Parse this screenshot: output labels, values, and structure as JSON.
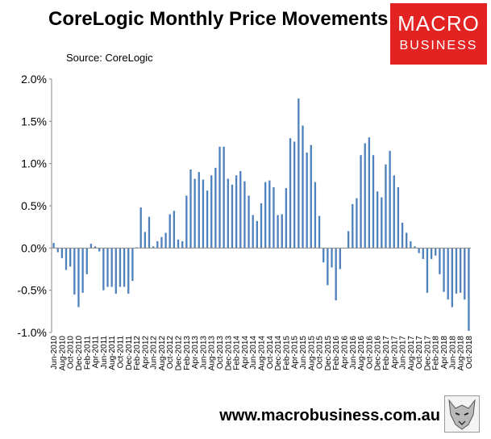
{
  "header": {
    "title": "CoreLogic Monthly Price Movements",
    "source": "Source: CoreLogic"
  },
  "logo": {
    "line1": "MACRO",
    "line2": "BUSINESS",
    "color": "#e32322"
  },
  "footer": {
    "url": "www.macrobusiness.com.au"
  },
  "chart_data": {
    "type": "bar",
    "title": "CoreLogic Monthly Price Movements",
    "xlabel": "",
    "ylabel": "",
    "ylim": [
      -1.0,
      2.0
    ],
    "yticks": [
      "2.0%",
      "1.5%",
      "1.0%",
      "0.5%",
      "0.0%",
      "-0.5%",
      "-1.0%"
    ],
    "grid": false,
    "bar_color": "#4f81bd",
    "tick_labels": [
      "Jun-2010",
      "Aug-2010",
      "Oct-2010",
      "Dec-2010",
      "Feb-2011",
      "Apr-2011",
      "Jun-2011",
      "Aug-2011",
      "Oct-2011",
      "Dec-2011",
      "Feb-2012",
      "Apr-2012",
      "Jun-2012",
      "Aug-2012",
      "Oct-2012",
      "Dec-2012",
      "Feb-2013",
      "Apr-2013",
      "Jun-2013",
      "Aug-2013",
      "Oct-2013",
      "Dec-2013",
      "Feb-2014",
      "Apr-2014",
      "Jun-2014",
      "Aug-2014",
      "Oct-2014",
      "Dec-2014",
      "Feb-2015",
      "Apr-2015",
      "Jun-2015",
      "Aug-2015",
      "Oct-2015",
      "Dec-2015",
      "Feb-2016",
      "Apr-2016",
      "Jun-2016",
      "Aug-2016",
      "Oct-2016",
      "Dec-2016",
      "Feb-2017",
      "Apr-2017",
      "Jun-2017",
      "Aug-2017",
      "Oct-2017",
      "Dec-2017",
      "Feb-2018",
      "Apr-2018",
      "Jun-2018",
      "Aug-2018",
      "Oct-2018"
    ],
    "categories": [
      "Jun-2010",
      "Jul-2010",
      "Aug-2010",
      "Sep-2010",
      "Oct-2010",
      "Nov-2010",
      "Dec-2010",
      "Jan-2011",
      "Feb-2011",
      "Mar-2011",
      "Apr-2011",
      "May-2011",
      "Jun-2011",
      "Jul-2011",
      "Aug-2011",
      "Sep-2011",
      "Oct-2011",
      "Nov-2011",
      "Dec-2011",
      "Jan-2012",
      "Feb-2012",
      "Mar-2012",
      "Apr-2012",
      "May-2012",
      "Jun-2012",
      "Jul-2012",
      "Aug-2012",
      "Sep-2012",
      "Oct-2012",
      "Nov-2012",
      "Dec-2012",
      "Jan-2013",
      "Feb-2013",
      "Mar-2013",
      "Apr-2013",
      "May-2013",
      "Jun-2013",
      "Jul-2013",
      "Aug-2013",
      "Sep-2013",
      "Oct-2013",
      "Nov-2013",
      "Dec-2013",
      "Jan-2014",
      "Feb-2014",
      "Mar-2014",
      "Apr-2014",
      "May-2014",
      "Jun-2014",
      "Jul-2014",
      "Aug-2014",
      "Sep-2014",
      "Oct-2014",
      "Nov-2014",
      "Dec-2014",
      "Jan-2015",
      "Feb-2015",
      "Mar-2015",
      "Apr-2015",
      "May-2015",
      "Jun-2015",
      "Jul-2015",
      "Aug-2015",
      "Sep-2015",
      "Oct-2015",
      "Nov-2015",
      "Dec-2015",
      "Jan-2016",
      "Feb-2016",
      "Mar-2016",
      "Apr-2016",
      "May-2016",
      "Jun-2016",
      "Jul-2016",
      "Aug-2016",
      "Sep-2016",
      "Oct-2016",
      "Nov-2016",
      "Dec-2016",
      "Jan-2017",
      "Feb-2017",
      "Mar-2017",
      "Apr-2017",
      "May-2017",
      "Jun-2017",
      "Jul-2017",
      "Aug-2017",
      "Sep-2017",
      "Oct-2017",
      "Nov-2017",
      "Dec-2017",
      "Jan-2018",
      "Feb-2018",
      "Mar-2018",
      "Apr-2018",
      "May-2018",
      "Jun-2018",
      "Jul-2018",
      "Aug-2018",
      "Sep-2018",
      "Oct-2018"
    ],
    "values": [
      0.06,
      -0.05,
      -0.12,
      -0.26,
      -0.22,
      -0.55,
      -0.7,
      -0.53,
      -0.31,
      0.05,
      0.02,
      -0.04,
      -0.5,
      -0.46,
      -0.46,
      -0.54,
      -0.46,
      -0.46,
      -0.54,
      -0.39,
      0.01,
      0.48,
      0.19,
      0.37,
      0.02,
      0.08,
      0.13,
      0.18,
      0.4,
      0.44,
      0.1,
      0.08,
      0.62,
      0.93,
      0.82,
      0.9,
      0.81,
      0.68,
      0.86,
      0.95,
      1.2,
      1.2,
      0.82,
      0.75,
      0.86,
      0.91,
      0.79,
      0.62,
      0.39,
      0.32,
      0.53,
      0.78,
      0.8,
      0.72,
      0.39,
      0.4,
      0.71,
      1.3,
      1.26,
      1.77,
      1.45,
      1.13,
      1.22,
      0.78,
      0.38,
      -0.17,
      -0.44,
      -0.23,
      -0.62,
      -0.25,
      0.0,
      0.2,
      0.52,
      0.59,
      1.1,
      1.24,
      1.31,
      1.1,
      0.67,
      0.6,
      0.99,
      1.15,
      0.86,
      0.72,
      0.3,
      0.18,
      0.08,
      0.02,
      -0.06,
      -0.13,
      -0.53,
      -0.13,
      -0.09,
      -0.31,
      -0.52,
      -0.61,
      -0.7,
      -0.54,
      -0.53,
      -0.61,
      -0.98
    ]
  }
}
